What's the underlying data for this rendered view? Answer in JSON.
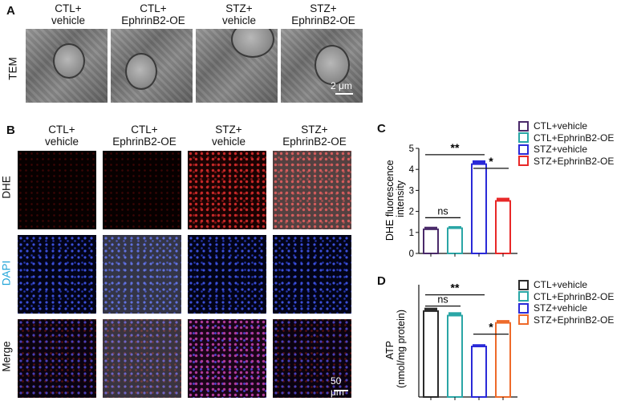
{
  "panel_a": {
    "letter": "A",
    "row_label": "TEM",
    "columns": [
      {
        "line1": "CTL+",
        "line2": "vehicle"
      },
      {
        "line1": "CTL+",
        "line2": "EphrinB2-OE"
      },
      {
        "line1": "STZ+",
        "line2": "vehicle"
      },
      {
        "line1": "STZ+",
        "line2": "EphrinB2-OE"
      }
    ],
    "scale_text": "2 μm"
  },
  "panel_b": {
    "letter": "B",
    "columns": [
      {
        "line1": "CTL+",
        "line2": "vehicle"
      },
      {
        "line1": "CTL+",
        "line2": "EphrinB2-OE"
      },
      {
        "line1": "STZ+",
        "line2": "vehicle"
      },
      {
        "line1": "STZ+",
        "line2": "EphrinB2-OE"
      }
    ],
    "rows": [
      "DHE",
      "DAPI",
      "Merge"
    ],
    "row_colors": [
      "#111111",
      "#1fa3d8",
      "#111111"
    ],
    "scale_text": "50 μm"
  },
  "legend": [
    "CTL+vehicle",
    "CTL+EphrinB2-OE",
    "STZ+vehicle",
    "STZ+EphrinB2-OE"
  ],
  "colors": [
    "#2b2b2b",
    "#2aa6a6",
    "#2a2ad8",
    "#e82828"
  ],
  "chart_data": [
    {
      "type": "bar",
      "letter": "C",
      "ylabel": "DHE fluorescence intensity",
      "ylim": [
        0,
        5
      ],
      "yticks": [
        "0",
        "1",
        "2",
        "3",
        "4",
        "5"
      ],
      "categories": [
        "CTL+vehicle",
        "CTL+EphrinB2-OE",
        "STZ+vehicle",
        "STZ+EphrinB2-OE"
      ],
      "values": [
        1.15,
        1.2,
        4.25,
        2.5
      ],
      "errors": [
        0.12,
        0.1,
        0.18,
        0.15
      ],
      "bar_colors": [
        "#4a2a6a",
        "#2aa6a6",
        "#2a2ad8",
        "#e82828"
      ],
      "annotations": [
        {
          "text": "**",
          "from": 0,
          "to": 2,
          "y": 4.7
        },
        {
          "text": "*",
          "from": 2,
          "to": 3,
          "y": 4.05
        },
        {
          "text": "ns",
          "from": 0,
          "to": 1,
          "y": 1.7
        }
      ]
    },
    {
      "type": "bar",
      "letter": "D",
      "ylabel_line1": "ATP",
      "ylabel_line2": "(nmol/mg protein)",
      "ylim": [
        0,
        2.0
      ],
      "yticks": [],
      "categories": [
        "CTL+vehicle",
        "CTL+EphrinB2-OE",
        "STZ+vehicle",
        "STZ+EphrinB2-OE"
      ],
      "values": [
        1.53,
        1.45,
        0.9,
        1.32
      ],
      "errors": [
        0.06,
        0.06,
        0.04,
        0.05
      ],
      "bar_colors": [
        "#2b2b2b",
        "#2aa6a6",
        "#2a2ad8",
        "#ee6a2a"
      ],
      "annotations": [
        {
          "text": "**",
          "from": 0,
          "to": 2,
          "y": 1.82
        },
        {
          "text": "ns",
          "from": 0,
          "to": 1,
          "y": 1.62
        },
        {
          "text": "*",
          "from": 2,
          "to": 3,
          "y": 1.12
        }
      ]
    }
  ]
}
